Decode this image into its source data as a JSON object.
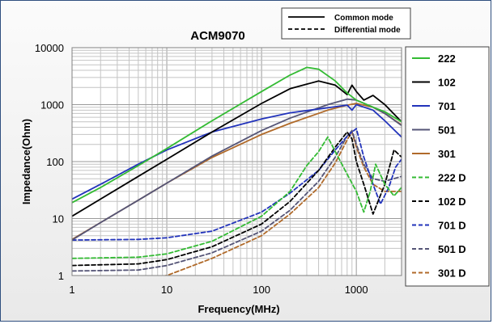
{
  "chart_data": {
    "type": "line",
    "title": "ACM9070",
    "xlabel": "Frequency(MHz)",
    "ylabel": "Impedance(Ohm)",
    "x_scale": "log",
    "y_scale": "log",
    "xlim": [
      1,
      3000
    ],
    "ylim": [
      1,
      10000
    ],
    "x_ticks": [
      "1",
      "10",
      "100",
      "1000"
    ],
    "y_ticks": [
      "1",
      "10",
      "100",
      "1000",
      "10000"
    ],
    "grid": true,
    "legend_position": "right",
    "line_type_legend": [
      {
        "label": "Common mode",
        "style": "solid"
      },
      {
        "label": "Differential mode",
        "style": "dashed"
      }
    ],
    "series": [
      {
        "name": "222",
        "color": "#33bb33",
        "style": "solid",
        "points": [
          [
            1,
            19
          ],
          [
            2,
            35
          ],
          [
            5,
            85
          ],
          [
            10,
            170
          ],
          [
            30,
            520
          ],
          [
            100,
            1700
          ],
          [
            200,
            3300
          ],
          [
            300,
            4500
          ],
          [
            400,
            4200
          ],
          [
            600,
            2600
          ],
          [
            800,
            1600
          ],
          [
            1000,
            1200
          ],
          [
            1500,
            900
          ],
          [
            2000,
            750
          ],
          [
            3000,
            500
          ]
        ]
      },
      {
        "name": "102",
        "color": "#000000",
        "style": "solid",
        "points": [
          [
            1,
            11
          ],
          [
            2,
            22
          ],
          [
            5,
            55
          ],
          [
            10,
            110
          ],
          [
            30,
            330
          ],
          [
            100,
            1050
          ],
          [
            200,
            1900
          ],
          [
            400,
            2600
          ],
          [
            600,
            2200
          ],
          [
            800,
            1500
          ],
          [
            900,
            2200
          ],
          [
            1000,
            1700
          ],
          [
            1200,
            1200
          ],
          [
            1500,
            1450
          ],
          [
            2000,
            1000
          ],
          [
            3000,
            500
          ]
        ]
      },
      {
        "name": "701",
        "color": "#2233bb",
        "style": "solid",
        "points": [
          [
            1,
            22
          ],
          [
            2,
            40
          ],
          [
            5,
            90
          ],
          [
            10,
            160
          ],
          [
            30,
            330
          ],
          [
            100,
            560
          ],
          [
            200,
            720
          ],
          [
            500,
            880
          ],
          [
            800,
            980
          ],
          [
            900,
            800
          ],
          [
            1000,
            1000
          ],
          [
            1500,
            800
          ],
          [
            2000,
            520
          ],
          [
            3000,
            270
          ]
        ]
      },
      {
        "name": "501",
        "color": "#555577",
        "style": "solid",
        "points": [
          [
            1,
            4.2
          ],
          [
            2,
            8.5
          ],
          [
            5,
            21
          ],
          [
            10,
            42
          ],
          [
            30,
            125
          ],
          [
            100,
            350
          ],
          [
            200,
            580
          ],
          [
            500,
            1000
          ],
          [
            800,
            1250
          ],
          [
            1000,
            1200
          ],
          [
            1500,
            900
          ],
          [
            2000,
            700
          ],
          [
            3000,
            430
          ]
        ]
      },
      {
        "name": "301",
        "color": "#b06a2a",
        "style": "solid",
        "points": [
          [
            1,
            4.3
          ],
          [
            2,
            8.5
          ],
          [
            5,
            21
          ],
          [
            10,
            42
          ],
          [
            30,
            118
          ],
          [
            100,
            300
          ],
          [
            200,
            470
          ],
          [
            500,
            800
          ],
          [
            800,
            980
          ],
          [
            1000,
            1050
          ],
          [
            1500,
            900
          ],
          [
            2000,
            700
          ],
          [
            3000,
            440
          ]
        ]
      },
      {
        "name": "222 D",
        "color": "#33bb33",
        "style": "dashed",
        "points": [
          [
            1,
            2
          ],
          [
            5,
            2.1
          ],
          [
            10,
            2.4
          ],
          [
            30,
            4
          ],
          [
            100,
            11
          ],
          [
            200,
            30
          ],
          [
            300,
            85
          ],
          [
            400,
            150
          ],
          [
            500,
            270
          ],
          [
            600,
            150
          ],
          [
            800,
            60
          ],
          [
            1000,
            30
          ],
          [
            1200,
            13
          ],
          [
            1400,
            30
          ],
          [
            1600,
            90
          ],
          [
            2000,
            40
          ],
          [
            2500,
            25
          ],
          [
            3000,
            35
          ]
        ]
      },
      {
        "name": "102 D",
        "color": "#000000",
        "style": "dashed",
        "points": [
          [
            1,
            1.5
          ],
          [
            5,
            1.6
          ],
          [
            10,
            1.9
          ],
          [
            30,
            3.2
          ],
          [
            100,
            8
          ],
          [
            200,
            20
          ],
          [
            400,
            70
          ],
          [
            600,
            180
          ],
          [
            800,
            330
          ],
          [
            900,
            250
          ],
          [
            1000,
            100
          ],
          [
            1200,
            40
          ],
          [
            1500,
            12
          ],
          [
            2000,
            40
          ],
          [
            2500,
            160
          ],
          [
            3000,
            120
          ]
        ]
      },
      {
        "name": "701 D",
        "color": "#2233bb",
        "style": "dashed",
        "points": [
          [
            1,
            4.2
          ],
          [
            5,
            4.3
          ],
          [
            10,
            4.6
          ],
          [
            30,
            6
          ],
          [
            100,
            13
          ],
          [
            200,
            28
          ],
          [
            400,
            70
          ],
          [
            600,
            160
          ],
          [
            800,
            280
          ],
          [
            1000,
            380
          ],
          [
            1200,
            120
          ],
          [
            1500,
            40
          ],
          [
            1800,
            18
          ],
          [
            2200,
            35
          ],
          [
            2600,
            80
          ],
          [
            3000,
            110
          ]
        ]
      },
      {
        "name": "501 D",
        "color": "#555577",
        "style": "dashed",
        "points": [
          [
            1,
            1.2
          ],
          [
            5,
            1.25
          ],
          [
            10,
            1.5
          ],
          [
            30,
            2.5
          ],
          [
            100,
            6
          ],
          [
            200,
            14
          ],
          [
            400,
            45
          ],
          [
            600,
            120
          ],
          [
            800,
            280
          ],
          [
            900,
            350
          ],
          [
            1000,
            200
          ],
          [
            1200,
            90
          ],
          [
            1500,
            50
          ],
          [
            2000,
            45
          ],
          [
            3000,
            55
          ]
        ]
      },
      {
        "name": "301 D",
        "color": "#b06a2a",
        "style": "dashed",
        "points": [
          [
            1,
            0.8
          ],
          [
            5,
            0.85
          ],
          [
            10,
            1
          ],
          [
            30,
            2
          ],
          [
            100,
            5
          ],
          [
            200,
            12
          ],
          [
            400,
            35
          ],
          [
            600,
            95
          ],
          [
            800,
            240
          ],
          [
            900,
            330
          ],
          [
            1000,
            180
          ],
          [
            1200,
            80
          ],
          [
            1500,
            40
          ],
          [
            2000,
            30
          ],
          [
            3000,
            30
          ]
        ]
      }
    ]
  }
}
